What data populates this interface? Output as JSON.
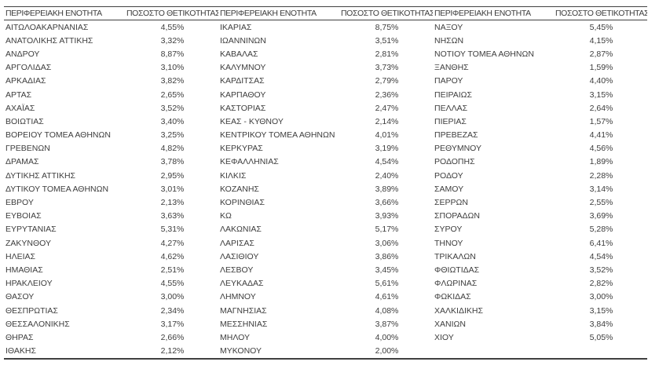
{
  "colors": {
    "background": "#ffffff",
    "text": "#3d3d3d",
    "border": "#404040"
  },
  "table": {
    "header": {
      "region": "ΠΕΡΙΦΕΡΕΙΑΚΗ ΕΝΟΤΗΤΑ",
      "positivity": "ΠΟΣΟΣΤΟ ΘΕΤΙΚΟΤΗΤΑΣ"
    },
    "column_pairs": [
      {
        "rows": [
          {
            "region": "ΑΙΤΩΛΟΑΚΑΡΝΑΝΙΑΣ",
            "value": "4,55%"
          },
          {
            "region": "ΑΝΑΤΟΛΙΚΗΣ ΑΤΤΙΚΗΣ",
            "value": "3,32%"
          },
          {
            "region": "ΑΝΔΡΟΥ",
            "value": "8,87%"
          },
          {
            "region": "ΑΡΓΟΛΙΔΑΣ",
            "value": "3,10%"
          },
          {
            "region": "ΑΡΚΑΔΙΑΣ",
            "value": "3,82%"
          },
          {
            "region": "ΑΡΤΑΣ",
            "value": "2,65%"
          },
          {
            "region": "ΑΧΑΪΑΣ",
            "value": "3,52%"
          },
          {
            "region": "ΒΟΙΩΤΙΑΣ",
            "value": "3,40%"
          },
          {
            "region": "ΒΟΡΕΙΟΥ ΤΟΜΕΑ ΑΘΗΝΩΝ",
            "value": "3,25%"
          },
          {
            "region": "ΓΡΕΒΕΝΩΝ",
            "value": "4,82%"
          },
          {
            "region": "ΔΡΑΜΑΣ",
            "value": "3,78%"
          },
          {
            "region": "ΔΥΤΙΚΗΣ ΑΤΤΙΚΗΣ",
            "value": "2,95%"
          },
          {
            "region": "ΔΥΤΙΚΟΥ ΤΟΜΕΑ ΑΘΗΝΩΝ",
            "value": "3,01%"
          },
          {
            "region": "ΕΒΡΟΥ",
            "value": "2,13%"
          },
          {
            "region": "ΕΥΒΟΙΑΣ",
            "value": "3,63%"
          },
          {
            "region": "ΕΥΡΥΤΑΝΙΑΣ",
            "value": "5,31%"
          },
          {
            "region": "ΖΑΚΥΝΘΟΥ",
            "value": "4,27%"
          },
          {
            "region": "ΗΛΕΙΑΣ",
            "value": "4,62%"
          },
          {
            "region": "ΗΜΑΘΙΑΣ",
            "value": "2,51%"
          },
          {
            "region": "ΗΡΑΚΛΕΙΟΥ",
            "value": "4,55%"
          },
          {
            "region": "ΘΑΣΟΥ",
            "value": "3,00%"
          },
          {
            "region": "ΘΕΣΠΡΩΤΙΑΣ",
            "value": "2,34%"
          },
          {
            "region": "ΘΕΣΣΑΛΟΝΙΚΗΣ",
            "value": "3,17%"
          },
          {
            "region": "ΘΗΡΑΣ",
            "value": "2,66%"
          },
          {
            "region": "ΙΘΑΚΗΣ",
            "value": "2,12%"
          }
        ]
      },
      {
        "rows": [
          {
            "region": "ΙΚΑΡΙΑΣ",
            "value": "8,75%"
          },
          {
            "region": "ΙΩΑΝΝΙΝΩΝ",
            "value": "3,51%"
          },
          {
            "region": "ΚΑΒΑΛΑΣ",
            "value": "2,81%"
          },
          {
            "region": "ΚΑΛΥΜΝΟΥ",
            "value": "3,73%"
          },
          {
            "region": "ΚΑΡΔΙΤΣΑΣ",
            "value": "2,79%"
          },
          {
            "region": "ΚΑΡΠΑΘΟΥ",
            "value": "2,36%"
          },
          {
            "region": "ΚΑΣΤΟΡΙΑΣ",
            "value": "2,47%"
          },
          {
            "region": "ΚΕΑΣ - ΚΥΘΝΟΥ",
            "value": "2,14%"
          },
          {
            "region": "ΚΕΝΤΡΙΚΟΥ ΤΟΜΕΑ ΑΘΗΝΩΝ",
            "value": "4,01%"
          },
          {
            "region": "ΚΕΡΚΥΡΑΣ",
            "value": "3,19%"
          },
          {
            "region": "ΚΕΦΑΛΛΗΝΙΑΣ",
            "value": "4,54%"
          },
          {
            "region": "ΚΙΛΚΙΣ",
            "value": "2,40%"
          },
          {
            "region": "ΚΟΖΑΝΗΣ",
            "value": "3,89%"
          },
          {
            "region": "ΚΟΡΙΝΘΙΑΣ",
            "value": "3,66%"
          },
          {
            "region": "ΚΩ",
            "value": "3,93%"
          },
          {
            "region": "ΛΑΚΩΝΙΑΣ",
            "value": "5,17%"
          },
          {
            "region": "ΛΑΡΙΣΑΣ",
            "value": "3,06%"
          },
          {
            "region": "ΛΑΣΙΘΙΟΥ",
            "value": "3,86%"
          },
          {
            "region": "ΛΕΣΒΟΥ",
            "value": "3,45%"
          },
          {
            "region": "ΛΕΥΚΑΔΑΣ",
            "value": "5,61%"
          },
          {
            "region": "ΛΗΜΝΟΥ",
            "value": "4,61%"
          },
          {
            "region": "ΜΑΓΝΗΣΙΑΣ",
            "value": "4,08%"
          },
          {
            "region": "ΜΕΣΣΗΝΙΑΣ",
            "value": "3,87%"
          },
          {
            "region": "ΜΗΛΟΥ",
            "value": "4,00%"
          },
          {
            "region": "ΜΥΚΟΝΟΥ",
            "value": "2,00%"
          }
        ]
      },
      {
        "rows": [
          {
            "region": "ΝΑΞΟΥ",
            "value": "5,45%"
          },
          {
            "region": "ΝΗΣΩΝ",
            "value": "4,15%"
          },
          {
            "region": "ΝΟΤΙΟΥ ΤΟΜΕΑ ΑΘΗΝΩΝ",
            "value": "2,87%"
          },
          {
            "region": "ΞΑΝΘΗΣ",
            "value": "1,59%"
          },
          {
            "region": "ΠΑΡΟΥ",
            "value": "4,40%"
          },
          {
            "region": "ΠΕΙΡΑΙΩΣ",
            "value": "3,15%"
          },
          {
            "region": "ΠΕΛΛΑΣ",
            "value": "2,64%"
          },
          {
            "region": "ΠΙΕΡΙΑΣ",
            "value": "1,57%"
          },
          {
            "region": "ΠΡΕΒΕΖΑΣ",
            "value": "4,41%"
          },
          {
            "region": "ΡΕΘΥΜΝΟΥ",
            "value": "4,56%"
          },
          {
            "region": "ΡΟΔΟΠΗΣ",
            "value": "1,89%"
          },
          {
            "region": "ΡΟΔΟΥ",
            "value": "2,28%"
          },
          {
            "region": "ΣΑΜΟΥ",
            "value": "3,14%"
          },
          {
            "region": "ΣΕΡΡΩΝ",
            "value": "2,55%"
          },
          {
            "region": "ΣΠΟΡΑΔΩΝ",
            "value": "3,69%"
          },
          {
            "region": "ΣΥΡΟΥ",
            "value": "5,28%"
          },
          {
            "region": "ΤΗΝΟΥ",
            "value": "6,41%"
          },
          {
            "region": "ΤΡΙΚΑΛΩΝ",
            "value": "4,54%"
          },
          {
            "region": "ΦΘΙΩΤΙΔΑΣ",
            "value": "3,52%"
          },
          {
            "region": "ΦΛΩΡΙΝΑΣ",
            "value": "2,82%"
          },
          {
            "region": "ΦΩΚΙΔΑΣ",
            "value": "3,00%"
          },
          {
            "region": "ΧΑΛΚΙΔΙΚΗΣ",
            "value": "3,15%"
          },
          {
            "region": "ΧΑΝΙΩΝ",
            "value": "3,84%"
          },
          {
            "region": "ΧΙΟΥ",
            "value": "5,05%"
          }
        ]
      }
    ]
  }
}
